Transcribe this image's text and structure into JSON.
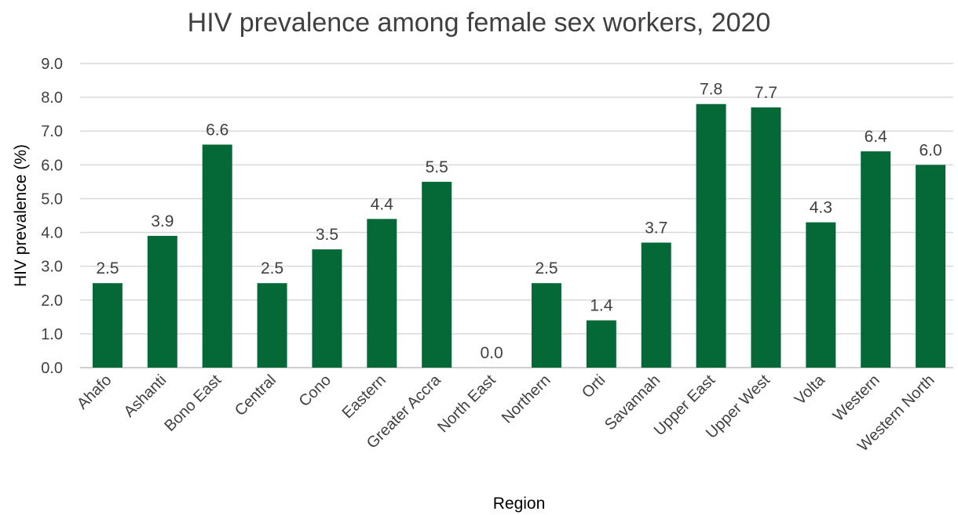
{
  "chart_data": {
    "type": "bar",
    "title": "HIV prevalence among female sex workers, 2020",
    "xlabel": "Region",
    "ylabel": "HIV prevalence (%)",
    "ylim": [
      0,
      9
    ],
    "ytick_step": 1,
    "grid": true,
    "bar_color": "#056937",
    "categories": [
      "Ahafo",
      "Ashanti",
      "Bono East",
      "Central",
      "Cono",
      "Eastern",
      "Greater Accra",
      "North East",
      "Northern",
      "Orti",
      "Savannah",
      "Upper East",
      "Upper West",
      "Volta",
      "Western",
      "Western North"
    ],
    "values": [
      2.5,
      3.9,
      6.6,
      2.5,
      3.5,
      4.4,
      5.5,
      0.0,
      2.5,
      1.4,
      3.7,
      7.8,
      7.7,
      4.3,
      6.4,
      6.0
    ]
  }
}
